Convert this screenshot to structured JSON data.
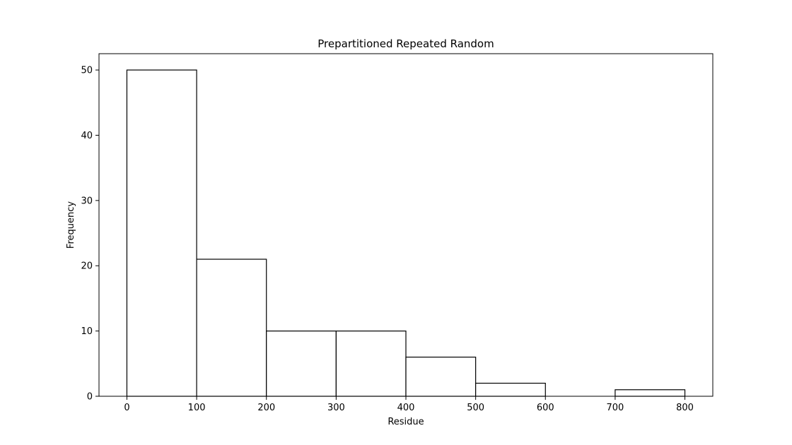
{
  "chart_data": {
    "type": "bar",
    "title": "Prepartitioned Repeated Random",
    "xlabel": "Residue",
    "ylabel": "Frequency",
    "bins": [
      {
        "start": 0,
        "end": 100,
        "value": 50
      },
      {
        "start": 100,
        "end": 200,
        "value": 21
      },
      {
        "start": 200,
        "end": 300,
        "value": 10
      },
      {
        "start": 300,
        "end": 400,
        "value": 10
      },
      {
        "start": 400,
        "end": 500,
        "value": 6
      },
      {
        "start": 500,
        "end": 600,
        "value": 2
      },
      {
        "start": 600,
        "end": 700,
        "value": 0
      },
      {
        "start": 700,
        "end": 800,
        "value": 1
      }
    ],
    "xlim": [
      -40,
      840
    ],
    "ylim": [
      0,
      52.5
    ],
    "xticks": [
      0,
      100,
      200,
      300,
      400,
      500,
      600,
      700,
      800
    ],
    "yticks": [
      0,
      10,
      20,
      30,
      40,
      50
    ],
    "grid": false,
    "legend": false,
    "bar_fill": "#ffffff",
    "bar_edge": "#000000"
  }
}
